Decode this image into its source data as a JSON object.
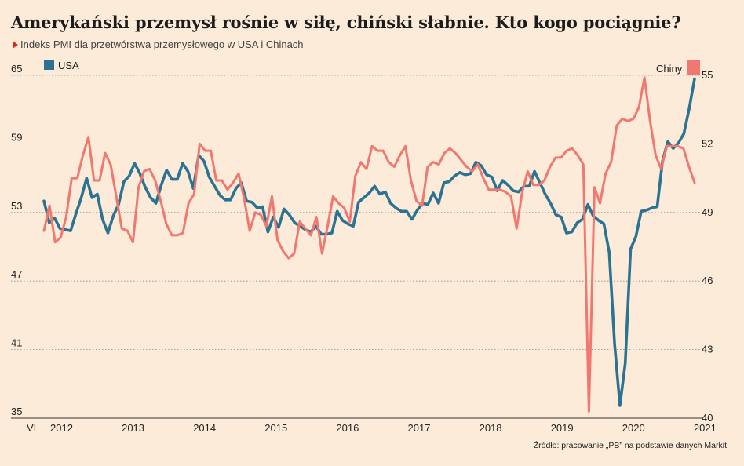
{
  "title": "Amerykański przemysł rośnie w siłę, chiński słabnie. Kto kogo pociągnie?",
  "subtitle": "Indeks PMI dla przetwórstwa przemysłowego w USA i Chinach",
  "source": "Źródło: pracowanie „PB” na podstawie danych Markit",
  "colors": {
    "background": "#fcebd8",
    "usa": "#2c7393",
    "china": "#f07870",
    "grid": "#8a8a8a",
    "subtitle_marker": "#e2231a"
  },
  "chart_data": {
    "type": "line",
    "xlabel": "",
    "x_start_label": "VI",
    "x_tick_labels": [
      "2012",
      "2013",
      "2014",
      "2015",
      "2016",
      "2017",
      "2018",
      "2019",
      "2020",
      "2021"
    ],
    "left_axis": {
      "ticks": [
        65,
        59,
        53,
        47,
        41,
        35
      ],
      "ylim": [
        35,
        65
      ]
    },
    "right_axis": {
      "ticks": [
        55,
        52,
        49,
        46,
        43,
        40
      ],
      "ylim": [
        40,
        55
      ]
    },
    "grid": true,
    "legend": [
      {
        "name": "USA",
        "placement": "top-left",
        "color": "#2c7393"
      },
      {
        "name": "Chiny",
        "placement": "top-right",
        "color": "#f07870"
      }
    ],
    "series": [
      {
        "name": "USA",
        "axis": "left",
        "values": [
          54.0,
          52.1,
          52.5,
          51.6,
          51.5,
          51.4,
          52.9,
          54.3,
          56.0,
          54.3,
          54.6,
          52.4,
          51.2,
          52.7,
          53.7,
          55.7,
          56.2,
          57.3,
          56.4,
          55.2,
          54.3,
          53.8,
          55.4,
          56.7,
          55.9,
          55.9,
          57.3,
          56.6,
          55.1,
          58.0,
          57.5,
          56.1,
          55.3,
          54.5,
          54.1,
          54.1,
          55.1,
          55.6,
          54.0,
          53.9,
          53.4,
          53.5,
          51.3,
          52.6,
          51.7,
          53.3,
          52.8,
          52.1,
          51.8,
          51.5,
          51.3,
          51.8,
          51.1,
          51.1,
          51.2,
          53.1,
          52.3,
          52.0,
          51.8,
          53.9,
          54.3,
          54.7,
          55.3,
          54.6,
          54.8,
          53.8,
          53.4,
          53.1,
          53.1,
          52.4,
          53.2,
          53.8,
          53.7,
          54.7,
          53.8,
          55.6,
          55.7,
          56.2,
          56.5,
          56.3,
          56.4,
          57.4,
          57.1,
          56.3,
          56.1,
          54.9,
          55.8,
          55.4,
          54.9,
          54.8,
          55.3,
          55.3,
          56.6,
          55.6,
          54.6,
          53.8,
          52.8,
          52.6,
          51.2,
          51.3,
          52.1,
          52.4,
          53.7,
          52.7,
          52.3,
          52.0,
          49.5,
          41.5,
          36.1,
          39.8,
          49.8,
          50.9,
          53.1,
          53.2,
          53.4,
          53.5,
          57.5,
          59.2,
          58.6,
          59.1,
          59.9,
          62.1,
          64.7
        ]
      },
      {
        "name": "Chiny",
        "axis": "right",
        "values": [
          48.2,
          49.3,
          47.7,
          47.9,
          48.8,
          50.5,
          50.5,
          51.5,
          52.3,
          50.4,
          50.4,
          51.6,
          51.1,
          49.7,
          48.3,
          48.2,
          47.7,
          50.1,
          50.8,
          50.9,
          50.4,
          49.5,
          48.5,
          48.0,
          48.0,
          48.1,
          49.4,
          49.8,
          52.0,
          51.7,
          51.7,
          50.4,
          50.4,
          50.0,
          50.3,
          50.7,
          49.6,
          48.2,
          49.0,
          48.9,
          48.4,
          49.7,
          47.8,
          47.3,
          47.0,
          47.2,
          48.6,
          48.3,
          48.0,
          48.8,
          47.2,
          48.4,
          49.7,
          49.4,
          49.2,
          48.6,
          50.6,
          51.2,
          50.9,
          51.9,
          51.7,
          51.7,
          51.2,
          51.0,
          51.5,
          51.9,
          50.4,
          49.5,
          49.3,
          51.0,
          51.2,
          51.1,
          51.6,
          51.8,
          51.6,
          51.3,
          51.0,
          50.8,
          51.1,
          50.5,
          50.0,
          50.0,
          50.0,
          49.9,
          49.7,
          48.3,
          49.9,
          50.8,
          50.2,
          50.2,
          50.4,
          51.0,
          51.4,
          51.4,
          51.7,
          51.8,
          51.5,
          51.1,
          40.3,
          50.1,
          49.4,
          50.7,
          51.2,
          52.8,
          53.1,
          53.0,
          53.1,
          53.6,
          54.9,
          53.0,
          51.5,
          50.9,
          51.9,
          51.9,
          51.9,
          51.8,
          51.0,
          50.3
        ]
      }
    ]
  }
}
